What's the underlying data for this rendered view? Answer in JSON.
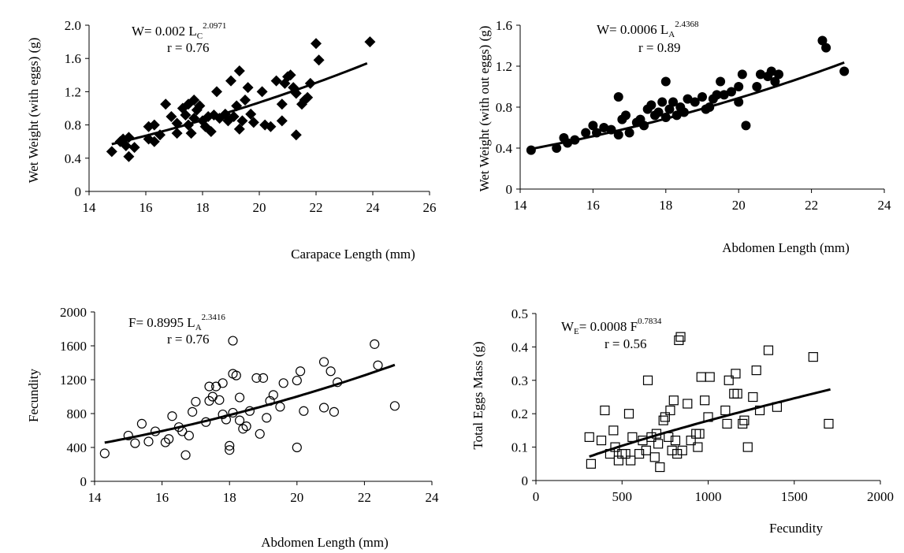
{
  "chart_data": [
    {
      "type": "scatter",
      "marker": "diamond-filled",
      "xlabel": "Carapace Length (mm)",
      "ylabel": "Wet Weight (with eggs) (g)",
      "xlim": [
        14,
        26
      ],
      "ylim": [
        0,
        2.0
      ],
      "xticks": [
        "14",
        "16",
        "18",
        "20",
        "22",
        "24",
        "26"
      ],
      "yticks": [
        "0",
        "0.4",
        "0.8",
        "1.2",
        "1.6",
        "2.0"
      ],
      "equation": {
        "lhs": "W= 0.002 L",
        "sub": "C",
        "sup": "2.0971"
      },
      "r_label": "r = 0.76",
      "fit": {
        "model": "power",
        "a": 0.002,
        "b": 2.0971
      },
      "fit_range": [
        14.8,
        23.8
      ],
      "points": [
        [
          14.8,
          0.48
        ],
        [
          15.1,
          0.6
        ],
        [
          15.2,
          0.63
        ],
        [
          15.3,
          0.55
        ],
        [
          15.4,
          0.65
        ],
        [
          15.4,
          0.42
        ],
        [
          15.6,
          0.53
        ],
        [
          16.1,
          0.63
        ],
        [
          16.1,
          0.78
        ],
        [
          16.3,
          0.6
        ],
        [
          16.3,
          0.8
        ],
        [
          16.5,
          0.68
        ],
        [
          16.7,
          1.05
        ],
        [
          16.9,
          0.9
        ],
        [
          17.1,
          0.82
        ],
        [
          17.1,
          0.7
        ],
        [
          17.3,
          1.0
        ],
        [
          17.4,
          0.92
        ],
        [
          17.5,
          1.05
        ],
        [
          17.5,
          0.8
        ],
        [
          17.6,
          0.7
        ],
        [
          17.7,
          1.1
        ],
        [
          17.7,
          0.88
        ],
        [
          17.8,
          0.98
        ],
        [
          17.9,
          1.03
        ],
        [
          18.0,
          0.85
        ],
        [
          18.1,
          0.78
        ],
        [
          18.2,
          0.9
        ],
        [
          18.3,
          0.72
        ],
        [
          18.4,
          0.92
        ],
        [
          18.5,
          1.2
        ],
        [
          18.6,
          0.88
        ],
        [
          18.8,
          0.93
        ],
        [
          18.9,
          0.85
        ],
        [
          19.0,
          1.33
        ],
        [
          19.1,
          0.9
        ],
        [
          19.2,
          1.03
        ],
        [
          19.3,
          1.45
        ],
        [
          19.3,
          0.75
        ],
        [
          19.4,
          0.85
        ],
        [
          19.5,
          1.1
        ],
        [
          19.6,
          1.25
        ],
        [
          19.7,
          0.93
        ],
        [
          19.8,
          0.83
        ],
        [
          20.1,
          1.2
        ],
        [
          20.2,
          0.8
        ],
        [
          20.4,
          0.78
        ],
        [
          20.6,
          1.33
        ],
        [
          20.8,
          0.85
        ],
        [
          20.8,
          1.05
        ],
        [
          20.9,
          1.3
        ],
        [
          21.0,
          1.38
        ],
        [
          21.1,
          1.4
        ],
        [
          21.2,
          1.25
        ],
        [
          21.3,
          0.68
        ],
        [
          21.3,
          1.18
        ],
        [
          21.5,
          1.05
        ],
        [
          21.6,
          1.1
        ],
        [
          21.7,
          1.13
        ],
        [
          21.8,
          1.3
        ],
        [
          22.0,
          1.78
        ],
        [
          22.1,
          1.58
        ],
        [
          23.9,
          1.8
        ]
      ]
    },
    {
      "type": "scatter",
      "marker": "circle-filled",
      "xlabel": "Abdomen Length (mm)",
      "ylabel": "Wet Weight (with out eggs) (g)",
      "xlim": [
        14,
        24
      ],
      "ylim": [
        0,
        1.6
      ],
      "xticks": [
        "14",
        "16",
        "18",
        "20",
        "22",
        "24"
      ],
      "yticks": [
        "0",
        "0.4",
        "0.8",
        "1.2",
        "1.6"
      ],
      "equation": {
        "lhs": "W= 0.0006 L",
        "sub": "A",
        "sup": "2.4368"
      },
      "r_label": "r = 0.89",
      "fit": {
        "model": "power",
        "a": 0.0006,
        "b": 2.4368
      },
      "fit_range": [
        14.3,
        22.9
      ],
      "points": [
        [
          14.3,
          0.38
        ],
        [
          15.0,
          0.4
        ],
        [
          15.2,
          0.5
        ],
        [
          15.3,
          0.45
        ],
        [
          15.5,
          0.48
        ],
        [
          15.8,
          0.55
        ],
        [
          16.0,
          0.62
        ],
        [
          16.1,
          0.55
        ],
        [
          16.3,
          0.6
        ],
        [
          16.5,
          0.58
        ],
        [
          16.7,
          0.53
        ],
        [
          16.7,
          0.9
        ],
        [
          16.8,
          0.68
        ],
        [
          16.9,
          0.72
        ],
        [
          17.0,
          0.55
        ],
        [
          17.2,
          0.65
        ],
        [
          17.3,
          0.68
        ],
        [
          17.4,
          0.62
        ],
        [
          17.5,
          0.78
        ],
        [
          17.6,
          0.82
        ],
        [
          17.7,
          0.72
        ],
        [
          17.8,
          0.75
        ],
        [
          17.9,
          0.85
        ],
        [
          18.0,
          1.05
        ],
        [
          18.0,
          0.7
        ],
        [
          18.1,
          0.78
        ],
        [
          18.2,
          0.85
        ],
        [
          18.3,
          0.72
        ],
        [
          18.4,
          0.8
        ],
        [
          18.5,
          0.75
        ],
        [
          18.6,
          0.88
        ],
        [
          18.8,
          0.85
        ],
        [
          19.0,
          0.9
        ],
        [
          19.1,
          0.78
        ],
        [
          19.2,
          0.8
        ],
        [
          19.3,
          0.88
        ],
        [
          19.4,
          0.92
        ],
        [
          19.5,
          1.05
        ],
        [
          19.6,
          0.92
        ],
        [
          19.8,
          0.95
        ],
        [
          20.0,
          0.85
        ],
        [
          20.0,
          1.0
        ],
        [
          20.1,
          1.12
        ],
        [
          20.2,
          0.62
        ],
        [
          20.5,
          1.0
        ],
        [
          20.6,
          1.12
        ],
        [
          20.8,
          1.1
        ],
        [
          20.9,
          1.15
        ],
        [
          21.0,
          1.05
        ],
        [
          21.1,
          1.12
        ],
        [
          22.3,
          1.45
        ],
        [
          22.4,
          1.38
        ],
        [
          22.9,
          1.15
        ]
      ]
    },
    {
      "type": "scatter",
      "marker": "circle-open",
      "xlabel": "Abdomen Length (mm)",
      "ylabel": "Fecundity",
      "xlim": [
        14,
        24
      ],
      "ylim": [
        0,
        2000
      ],
      "xticks": [
        "14",
        "16",
        "18",
        "20",
        "22",
        "24"
      ],
      "yticks": [
        "0",
        "400",
        "800",
        "1200",
        "1600",
        "2000"
      ],
      "equation": {
        "lhs": "F= 0.8995 L",
        "sub": "A",
        "sup": "2.3416"
      },
      "r_label": "r = 0.76",
      "fit": {
        "model": "power",
        "a": 0.8995,
        "b": 2.3416
      },
      "fit_range": [
        14.3,
        22.9
      ],
      "points": [
        [
          14.3,
          330
        ],
        [
          15.0,
          540
        ],
        [
          15.2,
          450
        ],
        [
          15.4,
          680
        ],
        [
          15.6,
          470
        ],
        [
          15.8,
          590
        ],
        [
          16.1,
          460
        ],
        [
          16.2,
          500
        ],
        [
          16.3,
          770
        ],
        [
          16.5,
          640
        ],
        [
          16.6,
          590
        ],
        [
          16.7,
          310
        ],
        [
          16.8,
          540
        ],
        [
          16.9,
          820
        ],
        [
          17.0,
          940
        ],
        [
          17.3,
          700
        ],
        [
          17.4,
          1120
        ],
        [
          17.4,
          950
        ],
        [
          17.5,
          1000
        ],
        [
          17.6,
          1120
        ],
        [
          17.7,
          960
        ],
        [
          17.8,
          790
        ],
        [
          17.8,
          1160
        ],
        [
          17.9,
          730
        ],
        [
          18.0,
          420
        ],
        [
          18.0,
          370
        ],
        [
          18.1,
          810
        ],
        [
          18.1,
          1660
        ],
        [
          18.1,
          1270
        ],
        [
          18.2,
          1250
        ],
        [
          18.3,
          720
        ],
        [
          18.3,
          990
        ],
        [
          18.4,
          620
        ],
        [
          18.5,
          650
        ],
        [
          18.6,
          830
        ],
        [
          18.8,
          1220
        ],
        [
          18.9,
          560
        ],
        [
          19.0,
          1220
        ],
        [
          19.1,
          750
        ],
        [
          19.2,
          950
        ],
        [
          19.3,
          1020
        ],
        [
          19.5,
          880
        ],
        [
          19.6,
          1160
        ],
        [
          20.0,
          400
        ],
        [
          20.0,
          1190
        ],
        [
          20.1,
          1300
        ],
        [
          20.2,
          830
        ],
        [
          20.8,
          1410
        ],
        [
          20.8,
          870
        ],
        [
          21.0,
          1300
        ],
        [
          21.1,
          820
        ],
        [
          21.2,
          1170
        ],
        [
          22.3,
          1620
        ],
        [
          22.4,
          1370
        ],
        [
          22.9,
          890
        ]
      ]
    },
    {
      "type": "scatter",
      "marker": "square-open",
      "xlabel": "Fecundity",
      "ylabel": "Total Eggs Mass (g)",
      "xlim": [
        0,
        2000
      ],
      "ylim": [
        0,
        0.5
      ],
      "xticks": [
        "0",
        "500",
        "1000",
        "1500",
        "2000"
      ],
      "yticks": [
        "0",
        "0.1",
        "0.2",
        "0.3",
        "0.4",
        "0.5"
      ],
      "equation": {
        "lhs": "W",
        "sub": "E",
        "mid": "= 0.0008 F",
        "sup": "0.7834"
      },
      "r_label": "r = 0.56",
      "fit": {
        "model": "power",
        "a": 0.0008,
        "b": 0.7834
      },
      "fit_range": [
        310,
        1710
      ],
      "points": [
        [
          310,
          0.13
        ],
        [
          320,
          0.05
        ],
        [
          380,
          0.12
        ],
        [
          400,
          0.21
        ],
        [
          430,
          0.08
        ],
        [
          450,
          0.15
        ],
        [
          460,
          0.1
        ],
        [
          480,
          0.06
        ],
        [
          500,
          0.08
        ],
        [
          520,
          0.08
        ],
        [
          540,
          0.2
        ],
        [
          550,
          0.06
        ],
        [
          560,
          0.13
        ],
        [
          600,
          0.08
        ],
        [
          620,
          0.12
        ],
        [
          640,
          0.09
        ],
        [
          650,
          0.3
        ],
        [
          670,
          0.13
        ],
        [
          690,
          0.07
        ],
        [
          700,
          0.14
        ],
        [
          710,
          0.11
        ],
        [
          720,
          0.04
        ],
        [
          740,
          0.18
        ],
        [
          750,
          0.19
        ],
        [
          770,
          0.13
        ],
        [
          780,
          0.21
        ],
        [
          790,
          0.09
        ],
        [
          800,
          0.24
        ],
        [
          810,
          0.12
        ],
        [
          820,
          0.08
        ],
        [
          830,
          0.42
        ],
        [
          840,
          0.43
        ],
        [
          850,
          0.09
        ],
        [
          880,
          0.23
        ],
        [
          900,
          0.12
        ],
        [
          930,
          0.14
        ],
        [
          940,
          0.1
        ],
        [
          950,
          0.14
        ],
        [
          960,
          0.31
        ],
        [
          980,
          0.24
        ],
        [
          1000,
          0.19
        ],
        [
          1010,
          0.31
        ],
        [
          1100,
          0.21
        ],
        [
          1110,
          0.17
        ],
        [
          1120,
          0.3
        ],
        [
          1150,
          0.26
        ],
        [
          1160,
          0.32
        ],
        [
          1170,
          0.26
        ],
        [
          1200,
          0.17
        ],
        [
          1210,
          0.18
        ],
        [
          1230,
          0.1
        ],
        [
          1260,
          0.25
        ],
        [
          1280,
          0.33
        ],
        [
          1300,
          0.21
        ],
        [
          1350,
          0.39
        ],
        [
          1400,
          0.22
        ],
        [
          1610,
          0.37
        ],
        [
          1700,
          0.17
        ]
      ]
    }
  ]
}
